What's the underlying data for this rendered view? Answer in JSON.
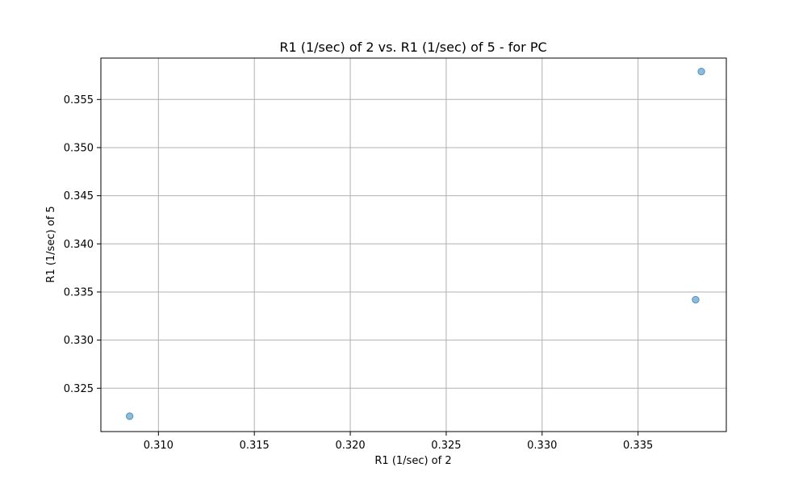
{
  "chart_data": {
    "type": "scatter",
    "title": "R1 (1/sec) of 2 vs. R1 (1/sec) of 5 - for PC",
    "xlabel": "R1 (1/sec) of 2",
    "ylabel": "R1 (1/sec) of 5",
    "xlim": [
      0.307,
      0.3396
    ],
    "ylim": [
      0.3205,
      0.3593
    ],
    "xticks": [
      0.31,
      0.315,
      0.32,
      0.325,
      0.33,
      0.335
    ],
    "xtick_labels": [
      "0.310",
      "0.315",
      "0.320",
      "0.325",
      "0.330",
      "0.335"
    ],
    "yticks": [
      0.325,
      0.33,
      0.335,
      0.34,
      0.345,
      0.35,
      0.355
    ],
    "ytick_labels": [
      "0.325",
      "0.330",
      "0.335",
      "0.340",
      "0.345",
      "0.350",
      "0.355"
    ],
    "grid": true,
    "point_color": "#1f77b4",
    "point_opacity": 0.5,
    "points": [
      {
        "x": 0.3085,
        "y": 0.3221
      },
      {
        "x": 0.338,
        "y": 0.3342
      },
      {
        "x": 0.3383,
        "y": 0.3579
      }
    ]
  }
}
